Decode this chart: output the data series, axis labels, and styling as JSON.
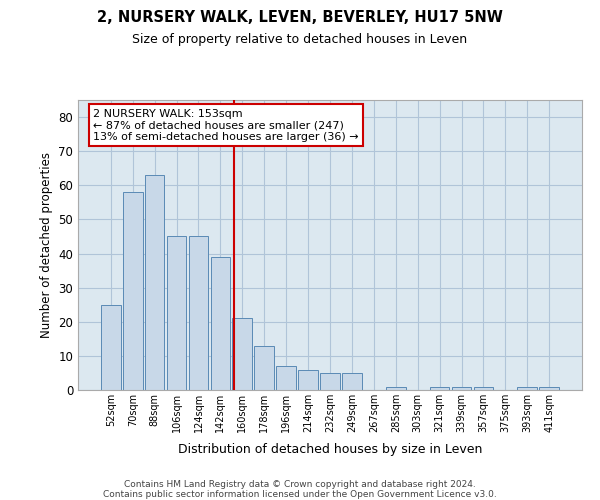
{
  "title": "2, NURSERY WALK, LEVEN, BEVERLEY, HU17 5NW",
  "subtitle": "Size of property relative to detached houses in Leven",
  "xlabel": "Distribution of detached houses by size in Leven",
  "ylabel": "Number of detached properties",
  "bar_values": [
    25,
    58,
    63,
    45,
    45,
    39,
    21,
    13,
    7,
    6,
    5,
    5,
    0,
    1,
    0,
    1,
    1,
    1,
    0,
    1,
    1
  ],
  "bar_labels": [
    "52sqm",
    "70sqm",
    "88sqm",
    "106sqm",
    "124sqm",
    "142sqm",
    "160sqm",
    "178sqm",
    "196sqm",
    "214sqm",
    "232sqm",
    "249sqm",
    "267sqm",
    "285sqm",
    "303sqm",
    "321sqm",
    "339sqm",
    "357sqm",
    "375sqm",
    "393sqm",
    "411sqm"
  ],
  "bar_color": "#c8d8e8",
  "bar_edge_color": "#5a8ab5",
  "vline_color": "#cc0000",
  "annotation_text": "2 NURSERY WALK: 153sqm\n← 87% of detached houses are smaller (247)\n13% of semi-detached houses are larger (36) →",
  "annotation_box_color": "#cc0000",
  "ylim": [
    0,
    85
  ],
  "yticks": [
    0,
    10,
    20,
    30,
    40,
    50,
    60,
    70,
    80
  ],
  "grid_color": "#b0c4d8",
  "background_color": "#dce8f0",
  "footer": "Contains HM Land Registry data © Crown copyright and database right 2024.\nContains public sector information licensed under the Open Government Licence v3.0."
}
